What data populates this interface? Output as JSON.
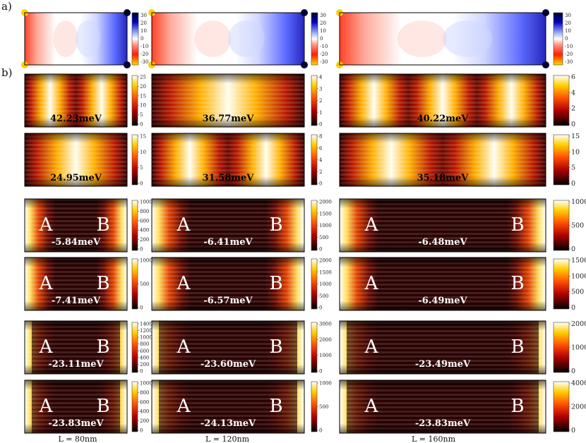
{
  "figure": {
    "panel_a_label": "a)",
    "panel_b_label": "b)",
    "site_a_label": "A",
    "site_b_label": "B"
  },
  "columns": [
    {
      "label": "L = 80nm"
    },
    {
      "label": "L = 120nm"
    },
    {
      "label": "L = 160nm"
    }
  ],
  "panel_a": {
    "colorbar_ticks": [
      "30",
      "20",
      "10",
      "0",
      "-10",
      "-20",
      "-30"
    ]
  },
  "rows": [
    {
      "type": "bulk",
      "bands": 6,
      "panels": [
        {
          "energy": "42.23meV",
          "ticks": [
            "25",
            "20",
            "15",
            "10",
            "5",
            "0"
          ],
          "ticks_big": false
        },
        {
          "energy": "36.77meV",
          "ticks": [
            "4",
            "3",
            "2",
            "1",
            "0"
          ],
          "ticks_big": false
        },
        {
          "energy": "40.22meV",
          "ticks": [
            "6",
            "4",
            "2",
            "0"
          ],
          "ticks_big": true
        }
      ]
    },
    {
      "type": "bulk",
      "bands": 2,
      "panels": [
        {
          "energy": "24.95meV",
          "ticks": [
            "15",
            "10",
            "5",
            "0"
          ],
          "ticks_big": false
        },
        {
          "energy": "31.58meV",
          "ticks": [
            "8",
            "6",
            "4",
            "2",
            "0"
          ],
          "ticks_big": false
        },
        {
          "energy": "35.18meV",
          "ticks": [
            "15",
            "10",
            "5",
            "0"
          ],
          "ticks_big": true
        }
      ]
    },
    {
      "type": "edge",
      "panels": [
        {
          "energy": "-5.84meV",
          "ticks": [
            "1000",
            "800",
            "600",
            "400",
            "200",
            "0"
          ],
          "ticks_big": false
        },
        {
          "energy": "-6.41meV",
          "ticks": [
            "2000",
            "1500",
            "1000",
            "500",
            "0"
          ],
          "ticks_big": false
        },
        {
          "energy": "-6.48meV",
          "ticks": [
            "1000",
            "500",
            "0"
          ],
          "ticks_big": true
        }
      ]
    },
    {
      "type": "edge",
      "panels": [
        {
          "energy": "-7.41meV",
          "ticks": [
            "1000",
            "500",
            "0"
          ],
          "ticks_big": false
        },
        {
          "energy": "-6.57meV",
          "ticks": [
            "2000",
            "1500",
            "1000",
            "500",
            "0"
          ],
          "ticks_big": false
        },
        {
          "energy": "-6.49meV",
          "ticks": [
            "1500",
            "1000",
            "500",
            "0"
          ],
          "ticks_big": true
        }
      ]
    },
    {
      "type": "edge",
      "panels": [
        {
          "energy": "-23.11meV",
          "ticks": [
            "1400",
            "1200",
            "1000",
            "800",
            "600",
            "400",
            "200",
            "0"
          ],
          "ticks_big": false
        },
        {
          "energy": "-23.60meV",
          "ticks": [
            "3000",
            "2000",
            "1000",
            "0"
          ],
          "ticks_big": false
        },
        {
          "energy": "-23.49meV",
          "ticks": [
            "2000",
            "1000",
            "0"
          ],
          "ticks_big": true
        }
      ]
    },
    {
      "type": "edge",
      "panels": [
        {
          "energy": "-23.83meV",
          "ticks": [
            "1000",
            "800",
            "600",
            "400",
            "200",
            "0"
          ],
          "ticks_big": false
        },
        {
          "energy": "-24.13meV",
          "ticks": [
            "1000",
            "500",
            "0"
          ],
          "ticks_big": false
        },
        {
          "energy": "-23.83meV",
          "ticks": [
            "4000",
            "2000",
            "0"
          ],
          "ticks_big": true
        }
      ]
    }
  ],
  "colors": {
    "hot_top": "#ffffff",
    "hot_high": "#ffff40",
    "hot_mid": "#ff8a00",
    "hot_low": "#c01000",
    "hot_bottom": "#1a0000",
    "div_pos": "#0000c0",
    "div_neg": "#ff3000",
    "div_neg_end": "#ffd000"
  }
}
